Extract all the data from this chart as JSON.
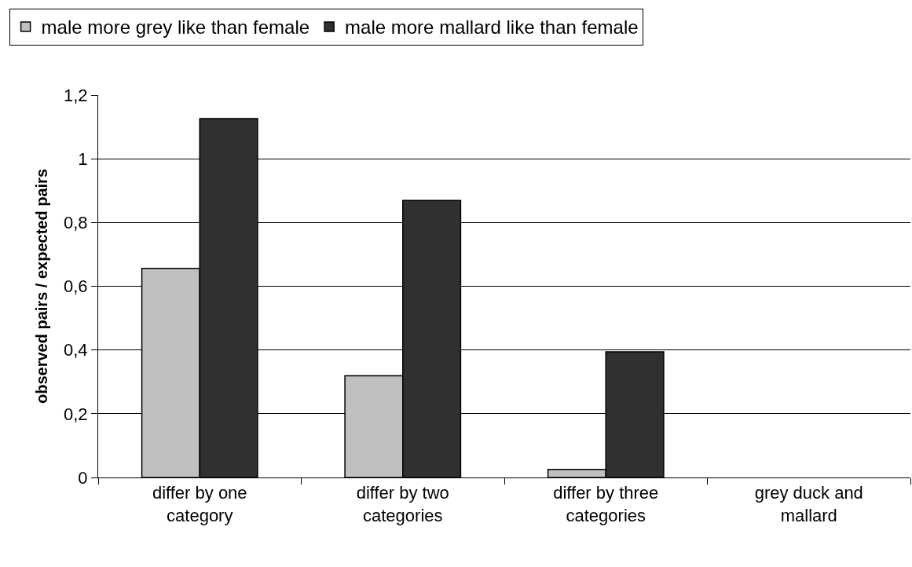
{
  "chart_data": {
    "type": "bar",
    "ylabel": "observed pairs / expected pairs",
    "categories": [
      "differ by one category",
      "differ by two categories",
      "differ by three categories",
      "grey duck and mallard"
    ],
    "series": [
      {
        "name": "male more grey like than female",
        "color": "#c0c0c0",
        "values": [
          0.656,
          0.319,
          0.025,
          0
        ]
      },
      {
        "name": "male more mallard like than female",
        "color": "#303030",
        "values": [
          1.126,
          0.869,
          0.394,
          0
        ]
      }
    ],
    "ylim": [
      0,
      1.2
    ],
    "yticks": [
      0,
      {
        "value": 0.2,
        "label": "0,2"
      },
      {
        "value": 0.4,
        "label": "0,4"
      },
      {
        "value": 0.6,
        "label": "0,6"
      },
      {
        "value": 0.8,
        "label": "0,8"
      },
      1,
      {
        "value": 1.2,
        "label": "1,2"
      }
    ],
    "grid": "y",
    "legend": "top left"
  }
}
